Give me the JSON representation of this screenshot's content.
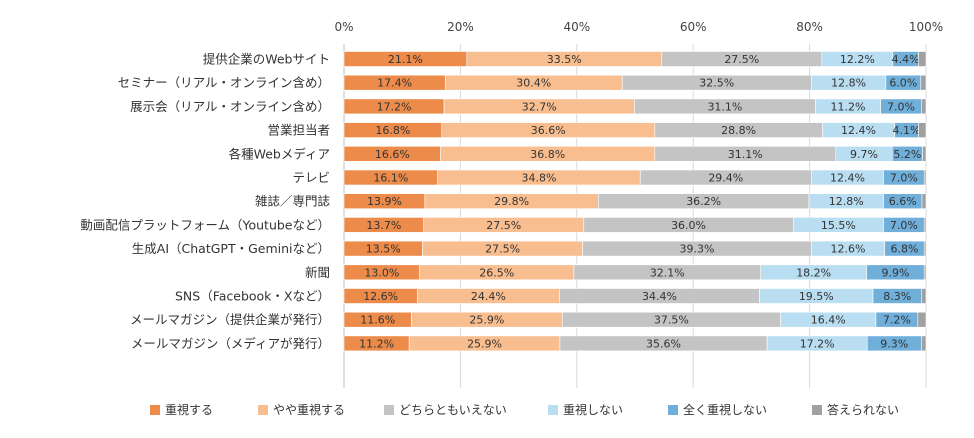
{
  "chart_data": {
    "type": "bar",
    "orientation": "horizontal",
    "stacked": true,
    "percent": true,
    "categories": [
      "提供企業のWebサイト",
      "セミナー（リアル・オンライン含め）",
      "展示会（リアル・オンライン含め）",
      "営業担当者",
      "各種Webメディア",
      "テレビ",
      "雑誌／専門誌",
      "動画配信プラットフォーム（Youtubeなど）",
      "生成AI（ChatGPT・Geminiなど）",
      "新聞",
      "SNS（Facebook・Xなど）",
      "メールマガジン（提供企業が発行）",
      "メールマガジン（メディアが発行）"
    ],
    "series": [
      {
        "name": "重視する",
        "color": "#ED8B4A",
        "values": [
          21.1,
          17.4,
          17.2,
          16.8,
          16.6,
          16.1,
          13.9,
          13.7,
          13.5,
          13.0,
          12.6,
          11.6,
          11.2
        ],
        "labels": [
          "21.1%",
          "17.4%",
          "17.2%",
          "16.8%",
          "16.6%",
          "16.1%",
          "13.9%",
          "13.7%",
          "13.5%",
          "13.0%",
          "12.6%",
          "11.6%",
          "11.2%"
        ]
      },
      {
        "name": "やや重視する",
        "color": "#F8BE90",
        "values": [
          33.5,
          30.4,
          32.7,
          36.6,
          36.8,
          34.8,
          29.8,
          27.5,
          27.5,
          26.5,
          24.4,
          25.9,
          25.9
        ],
        "labels": [
          "33.5%",
          "30.4%",
          "32.7%",
          "36.6%",
          "36.8%",
          "34.8%",
          "29.8%",
          "27.5%",
          "27.5%",
          "26.5%",
          "24.4%",
          "25.9%",
          "25.9%"
        ]
      },
      {
        "name": "どちらともいえない",
        "color": "#C4C4C4",
        "values": [
          27.5,
          32.5,
          31.1,
          28.8,
          31.1,
          29.4,
          36.2,
          36.0,
          39.3,
          32.1,
          34.4,
          37.5,
          35.6
        ],
        "labels": [
          "27.5%",
          "32.5%",
          "31.1%",
          "28.8%",
          "31.1%",
          "29.4%",
          "36.2%",
          "36.0%",
          "39.3%",
          "32.1%",
          "34.4%",
          "37.5%",
          "35.6%"
        ]
      },
      {
        "name": "重視しない",
        "color": "#B9DDF1",
        "values": [
          12.2,
          12.8,
          11.2,
          12.4,
          9.7,
          12.4,
          12.8,
          15.5,
          12.6,
          18.2,
          19.5,
          16.4,
          17.2
        ],
        "labels": [
          "12.2%",
          "12.8%",
          "11.2%",
          "12.4%",
          "9.7%",
          "12.4%",
          "12.8%",
          "15.5%",
          "12.6%",
          "18.2%",
          "19.5%",
          "16.4%",
          "17.2%"
        ]
      },
      {
        "name": "全く重視しない",
        "color": "#6FAFDA",
        "values": [
          4.4,
          6.0,
          7.0,
          4.1,
          5.2,
          7.0,
          6.6,
          7.0,
          6.8,
          9.9,
          8.3,
          7.2,
          9.3
        ],
        "labels": [
          "4.4%",
          "6.0%",
          "7.0%",
          "4.1%",
          "5.2%",
          "7.0%",
          "6.6%",
          "7.0%",
          "6.8%",
          "9.9%",
          "8.3%",
          "7.2%",
          "9.3%"
        ]
      },
      {
        "name": "答えられない",
        "color": "#A0A0A0",
        "values": [
          1.3,
          0.9,
          0.8,
          1.3,
          0.6,
          0.3,
          0.7,
          0.3,
          0.3,
          0.3,
          0.8,
          1.4,
          0.8
        ],
        "labels": [
          "",
          "",
          "",
          "",
          "",
          "",
          "",
          "",
          "",
          "",
          "",
          "",
          ""
        ]
      }
    ],
    "xaxis": {
      "range": [
        0,
        100
      ],
      "ticks": [
        0,
        20,
        40,
        60,
        80,
        100
      ],
      "tick_labels": [
        "0%",
        "20%",
        "40%",
        "60%",
        "80%",
        "100%"
      ],
      "position": "top"
    },
    "grid": true,
    "legend": {
      "position": "bottom"
    }
  }
}
